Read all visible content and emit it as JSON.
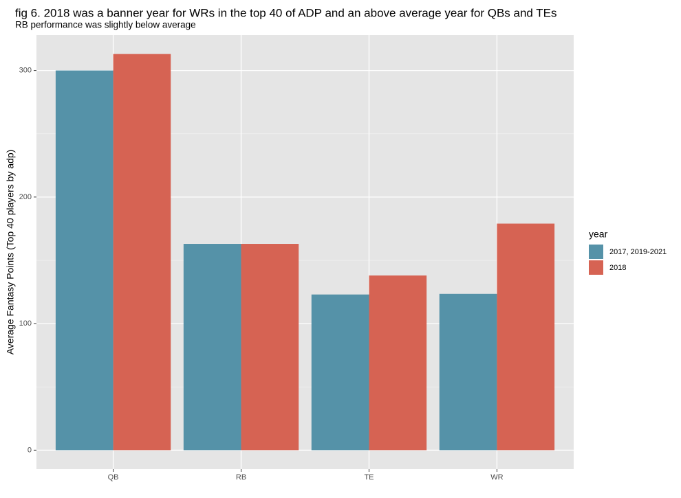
{
  "chart_data": {
    "type": "bar",
    "title": "fig 6. 2018 was a banner year for WRs in the top 40 of ADP and an above average year for QBs and TEs",
    "subtitle": "RB performance was slightly below average",
    "xlabel": "",
    "ylabel": "Average Fantasy Points (Top 40 players by adp)",
    "categories": [
      "QB",
      "RB",
      "TE",
      "WR"
    ],
    "series": [
      {
        "name": "2017, 2019-2021",
        "color": "#5592a8",
        "values": [
          300,
          163,
          123,
          123.5
        ]
      },
      {
        "name": "2018",
        "color": "#d66353",
        "values": [
          313,
          163,
          138,
          179
        ]
      }
    ],
    "ylim": [
      -15,
      328
    ],
    "yticks": [
      0,
      100,
      200,
      300
    ],
    "grid": true,
    "legend": {
      "title": "year",
      "position": "right"
    }
  }
}
